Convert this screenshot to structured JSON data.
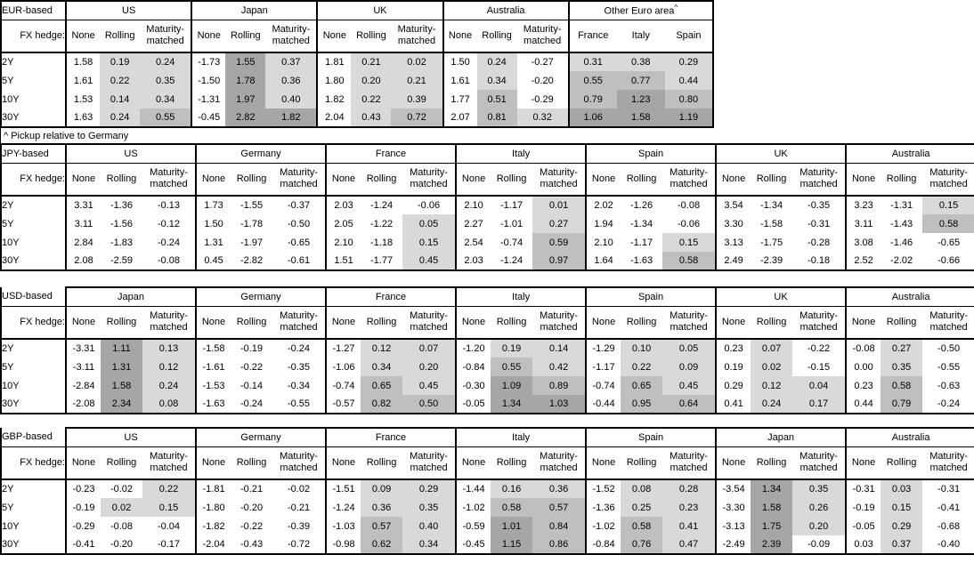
{
  "labels": {
    "fx_hedge": "FX hedge:",
    "hedge_cols": [
      "None",
      "Rolling",
      "Maturity-matched"
    ],
    "tenors": [
      "2Y",
      "5Y",
      "10Y",
      "30Y"
    ]
  },
  "colors": {
    "background": "#ffffff",
    "border": "#000000",
    "text": "#000000",
    "shade_light": "#d9d9d9",
    "shade_medium": "#bfbfbf",
    "shade_dark": "#a6a6a6"
  },
  "shading_rule": {
    "negative": "none",
    "light_below": 0.5,
    "medium_below": 1.0,
    "dark_at_or_above": 1.0
  },
  "sections": [
    {
      "id": "eur",
      "title": "EUR-based",
      "footnote": "^ Pickup relative to Germany",
      "groups": [
        {
          "name": "US",
          "shaded_columns": [
            1,
            2
          ],
          "rows": [
            [
              "1.58",
              "0.19",
              "0.24"
            ],
            [
              "1.61",
              "0.22",
              "0.35"
            ],
            [
              "1.53",
              "0.14",
              "0.34"
            ],
            [
              "1.63",
              "0.24",
              "0.55"
            ]
          ]
        },
        {
          "name": "Japan",
          "shaded_columns": [
            1,
            2
          ],
          "rows": [
            [
              "-1.73",
              "1.55",
              "0.37"
            ],
            [
              "-1.50",
              "1.78",
              "0.36"
            ],
            [
              "-1.31",
              "1.97",
              "0.40"
            ],
            [
              "-0.45",
              "2.82",
              "1.82"
            ]
          ]
        },
        {
          "name": "UK",
          "shaded_columns": [
            1,
            2
          ],
          "rows": [
            [
              "1.81",
              "0.21",
              "0.02"
            ],
            [
              "1.80",
              "0.20",
              "0.21"
            ],
            [
              "1.82",
              "0.22",
              "0.39"
            ],
            [
              "2.04",
              "0.43",
              "0.72"
            ]
          ]
        },
        {
          "name": "Australia",
          "shaded_columns": [
            1,
            2
          ],
          "rows": [
            [
              "1.50",
              "0.24",
              "-0.27"
            ],
            [
              "1.61",
              "0.34",
              "-0.20"
            ],
            [
              "1.77",
              "0.51",
              "-0.29"
            ],
            [
              "2.07",
              "0.81",
              "0.32"
            ]
          ]
        },
        {
          "name": "Other Euro area",
          "superscript": "^",
          "columns": [
            "France",
            "Italy",
            "Spain"
          ],
          "shaded_columns": [
            0,
            1,
            2
          ],
          "rows": [
            [
              "0.31",
              "0.38",
              "0.29"
            ],
            [
              "0.55",
              "0.77",
              "0.44"
            ],
            [
              "0.79",
              "1.23",
              "0.80"
            ],
            [
              "1.06",
              "1.58",
              "1.19"
            ]
          ]
        }
      ]
    },
    {
      "id": "jpy",
      "title": "JPY-based",
      "groups": [
        {
          "name": "US",
          "shaded_columns": [
            1,
            2
          ],
          "rows": [
            [
              "3.31",
              "-1.36",
              "-0.13"
            ],
            [
              "3.11",
              "-1.56",
              "-0.12"
            ],
            [
              "2.84",
              "-1.83",
              "-0.24"
            ],
            [
              "2.08",
              "-2.59",
              "-0.08"
            ]
          ]
        },
        {
          "name": "Germany",
          "shaded_columns": [
            1,
            2
          ],
          "rows": [
            [
              "1.73",
              "-1.55",
              "-0.37"
            ],
            [
              "1.50",
              "-1.78",
              "-0.50"
            ],
            [
              "1.31",
              "-1.97",
              "-0.65"
            ],
            [
              "0.45",
              "-2.82",
              "-0.61"
            ]
          ]
        },
        {
          "name": "France",
          "shaded_columns": [
            1,
            2
          ],
          "rows": [
            [
              "2.03",
              "-1.24",
              "-0.06"
            ],
            [
              "2.05",
              "-1.22",
              "0.05"
            ],
            [
              "2.10",
              "-1.18",
              "0.15"
            ],
            [
              "1.51",
              "-1.77",
              "0.45"
            ]
          ]
        },
        {
          "name": "Italy",
          "shaded_columns": [
            1,
            2
          ],
          "rows": [
            [
              "2.10",
              "-1.17",
              "0.01"
            ],
            [
              "2.27",
              "-1.01",
              "0.27"
            ],
            [
              "2.54",
              "-0.74",
              "0.59"
            ],
            [
              "2.03",
              "-1.24",
              "0.97"
            ]
          ]
        },
        {
          "name": "Spain",
          "shaded_columns": [
            1,
            2
          ],
          "rows": [
            [
              "2.02",
              "-1.26",
              "-0.08"
            ],
            [
              "1.94",
              "-1.34",
              "-0.06"
            ],
            [
              "2.10",
              "-1.17",
              "0.15"
            ],
            [
              "1.64",
              "-1.63",
              "0.58"
            ]
          ]
        },
        {
          "name": "UK",
          "shaded_columns": [
            1,
            2
          ],
          "rows": [
            [
              "3.54",
              "-1.34",
              "-0.35"
            ],
            [
              "3.30",
              "-1.58",
              "-0.31"
            ],
            [
              "3.13",
              "-1.75",
              "-0.28"
            ],
            [
              "2.49",
              "-2.39",
              "-0.18"
            ]
          ]
        },
        {
          "name": "Australia",
          "shaded_columns": [
            1,
            2
          ],
          "rows": [
            [
              "3.23",
              "-1.31",
              "0.15"
            ],
            [
              "3.11",
              "-1.43",
              "0.58"
            ],
            [
              "3.08",
              "-1.46",
              "-0.65"
            ],
            [
              "2.52",
              "-2.02",
              "-0.66"
            ]
          ]
        }
      ]
    },
    {
      "id": "usd",
      "title": "USD-based",
      "groups": [
        {
          "name": "Japan",
          "shaded_columns": [
            1,
            2
          ],
          "rows": [
            [
              "-3.31",
              "1.11",
              "0.13"
            ],
            [
              "-3.11",
              "1.31",
              "0.12"
            ],
            [
              "-2.84",
              "1.58",
              "0.24"
            ],
            [
              "-2.08",
              "2.34",
              "0.08"
            ]
          ]
        },
        {
          "name": "Germany",
          "shaded_columns": [
            1,
            2
          ],
          "rows": [
            [
              "-1.58",
              "-0.19",
              "-0.24"
            ],
            [
              "-1.61",
              "-0.22",
              "-0.35"
            ],
            [
              "-1.53",
              "-0.14",
              "-0.34"
            ],
            [
              "-1.63",
              "-0.24",
              "-0.55"
            ]
          ]
        },
        {
          "name": "France",
          "shaded_columns": [
            1,
            2
          ],
          "rows": [
            [
              "-1.27",
              "0.12",
              "0.07"
            ],
            [
              "-1.06",
              "0.34",
              "0.20"
            ],
            [
              "-0.74",
              "0.65",
              "0.45"
            ],
            [
              "-0.57",
              "0.82",
              "0.50"
            ]
          ]
        },
        {
          "name": "Italy",
          "shaded_columns": [
            1,
            2
          ],
          "rows": [
            [
              "-1.20",
              "0.19",
              "0.14"
            ],
            [
              "-0.84",
              "0.55",
              "0.42"
            ],
            [
              "-0.30",
              "1.09",
              "0.89"
            ],
            [
              "-0.05",
              "1.34",
              "1.03"
            ]
          ]
        },
        {
          "name": "Spain",
          "shaded_columns": [
            1,
            2
          ],
          "rows": [
            [
              "-1.29",
              "0.10",
              "0.05"
            ],
            [
              "-1.17",
              "0.22",
              "0.09"
            ],
            [
              "-0.74",
              "0.65",
              "0.45"
            ],
            [
              "-0.44",
              "0.95",
              "0.64"
            ]
          ]
        },
        {
          "name": "UK",
          "shaded_columns": [
            1,
            2
          ],
          "rows": [
            [
              "0.23",
              "0.07",
              "-0.22"
            ],
            [
              "0.19",
              "0.02",
              "-0.15"
            ],
            [
              "0.29",
              "0.12",
              "0.04"
            ],
            [
              "0.41",
              "0.24",
              "0.17"
            ]
          ]
        },
        {
          "name": "Australia",
          "shaded_columns": [
            1,
            2
          ],
          "rows": [
            [
              "-0.08",
              "0.27",
              "-0.50"
            ],
            [
              "0.00",
              "0.35",
              "-0.55"
            ],
            [
              "0.23",
              "0.58",
              "-0.63"
            ],
            [
              "0.44",
              "0.79",
              "-0.24"
            ]
          ]
        }
      ]
    },
    {
      "id": "gbp",
      "title": "GBP-based",
      "groups": [
        {
          "name": "US",
          "shaded_columns": [
            1,
            2
          ],
          "rows": [
            [
              "-0.23",
              "-0.02",
              "0.22"
            ],
            [
              "-0.19",
              "0.02",
              "0.15"
            ],
            [
              "-0.29",
              "-0.08",
              "-0.04"
            ],
            [
              "-0.41",
              "-0.20",
              "-0.17"
            ]
          ]
        },
        {
          "name": "Germany",
          "shaded_columns": [
            1,
            2
          ],
          "rows": [
            [
              "-1.81",
              "-0.21",
              "-0.02"
            ],
            [
              "-1.80",
              "-0.20",
              "-0.21"
            ],
            [
              "-1.82",
              "-0.22",
              "-0.39"
            ],
            [
              "-2.04",
              "-0.43",
              "-0.72"
            ]
          ]
        },
        {
          "name": "France",
          "shaded_columns": [
            1,
            2
          ],
          "rows": [
            [
              "-1.51",
              "0.09",
              "0.29"
            ],
            [
              "-1.24",
              "0.36",
              "0.35"
            ],
            [
              "-1.03",
              "0.57",
              "0.40"
            ],
            [
              "-0.98",
              "0.62",
              "0.34"
            ]
          ]
        },
        {
          "name": "Italy",
          "shaded_columns": [
            1,
            2
          ],
          "rows": [
            [
              "-1.44",
              "0.16",
              "0.36"
            ],
            [
              "-1.02",
              "0.58",
              "0.57"
            ],
            [
              "-0.59",
              "1.01",
              "0.84"
            ],
            [
              "-0.45",
              "1.15",
              "0.86"
            ]
          ]
        },
        {
          "name": "Spain",
          "shaded_columns": [
            1,
            2
          ],
          "rows": [
            [
              "-1.52",
              "0.08",
              "0.28"
            ],
            [
              "-1.36",
              "0.25",
              "0.23"
            ],
            [
              "-1.02",
              "0.58",
              "0.41"
            ],
            [
              "-0.84",
              "0.76",
              "0.47"
            ]
          ]
        },
        {
          "name": "Japan",
          "shaded_columns": [
            1,
            2
          ],
          "rows": [
            [
              "-3.54",
              "1.34",
              "0.35"
            ],
            [
              "-3.30",
              "1.58",
              "0.26"
            ],
            [
              "-3.13",
              "1.75",
              "0.20"
            ],
            [
              "-2.49",
              "2.39",
              "-0.09"
            ]
          ]
        },
        {
          "name": "Australia",
          "shaded_columns": [
            1,
            2
          ],
          "rows": [
            [
              "-0.31",
              "0.03",
              "-0.31"
            ],
            [
              "-0.19",
              "0.15",
              "-0.41"
            ],
            [
              "-0.05",
              "0.29",
              "-0.68"
            ],
            [
              "0.03",
              "0.37",
              "-0.40"
            ]
          ]
        }
      ]
    }
  ]
}
